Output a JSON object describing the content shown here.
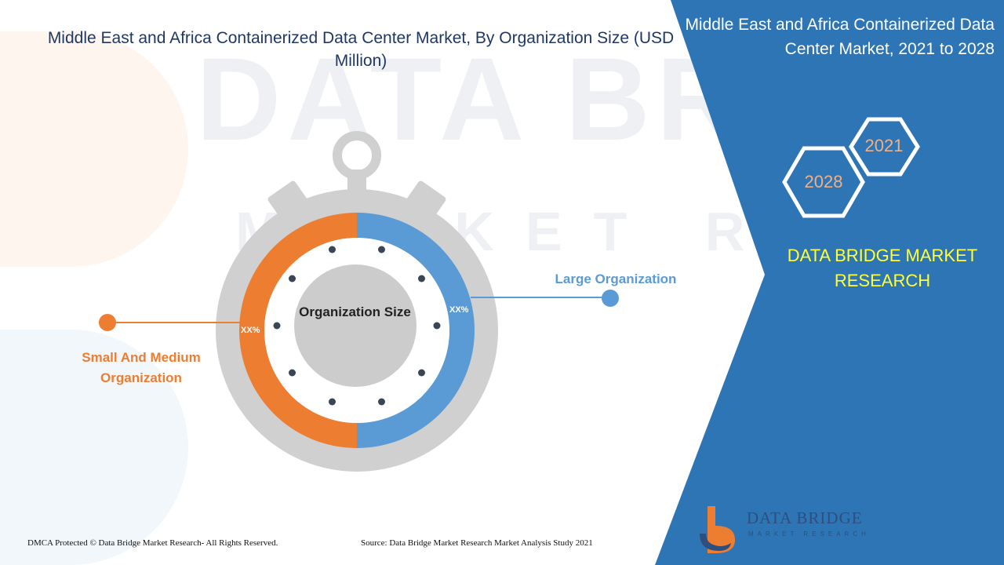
{
  "page": {
    "title": "Middle East and Africa Containerized Data Center Market, By Organization Size (USD Million)",
    "side_title": "Middle East and Africa Containerized Data Center Market, 2021 to 2028",
    "brand": "DATA BRIDGE MARKET RESEARCH",
    "years": {
      "start": "2021",
      "end": "2028"
    },
    "footer_left": "DMCA Protected © Data Bridge Market Research- All Rights Reserved.",
    "footer_source": "Source: Data Bridge Market Research Market Analysis Study 2021",
    "logo_text": "DATA BRIDGE",
    "logo_sub": "MARKET RESEARCH",
    "watermark_1": "DATA BRIDGE",
    "watermark_2": "MARKET RESEARCH"
  },
  "chart_data": {
    "type": "pie",
    "center_label": "Organization Size",
    "series": [
      {
        "name": "Large Organization",
        "label": "XX%",
        "color": "#5b9bd5"
      },
      {
        "name": "Small And Medium Organization",
        "label": "XX%",
        "color": "#ed7d31"
      }
    ]
  },
  "colors": {
    "panel": "#2e75b6",
    "title": "#1f3864",
    "ring": "#d0d0d0",
    "inner": "#cccccc",
    "brand": "#ffff33"
  }
}
